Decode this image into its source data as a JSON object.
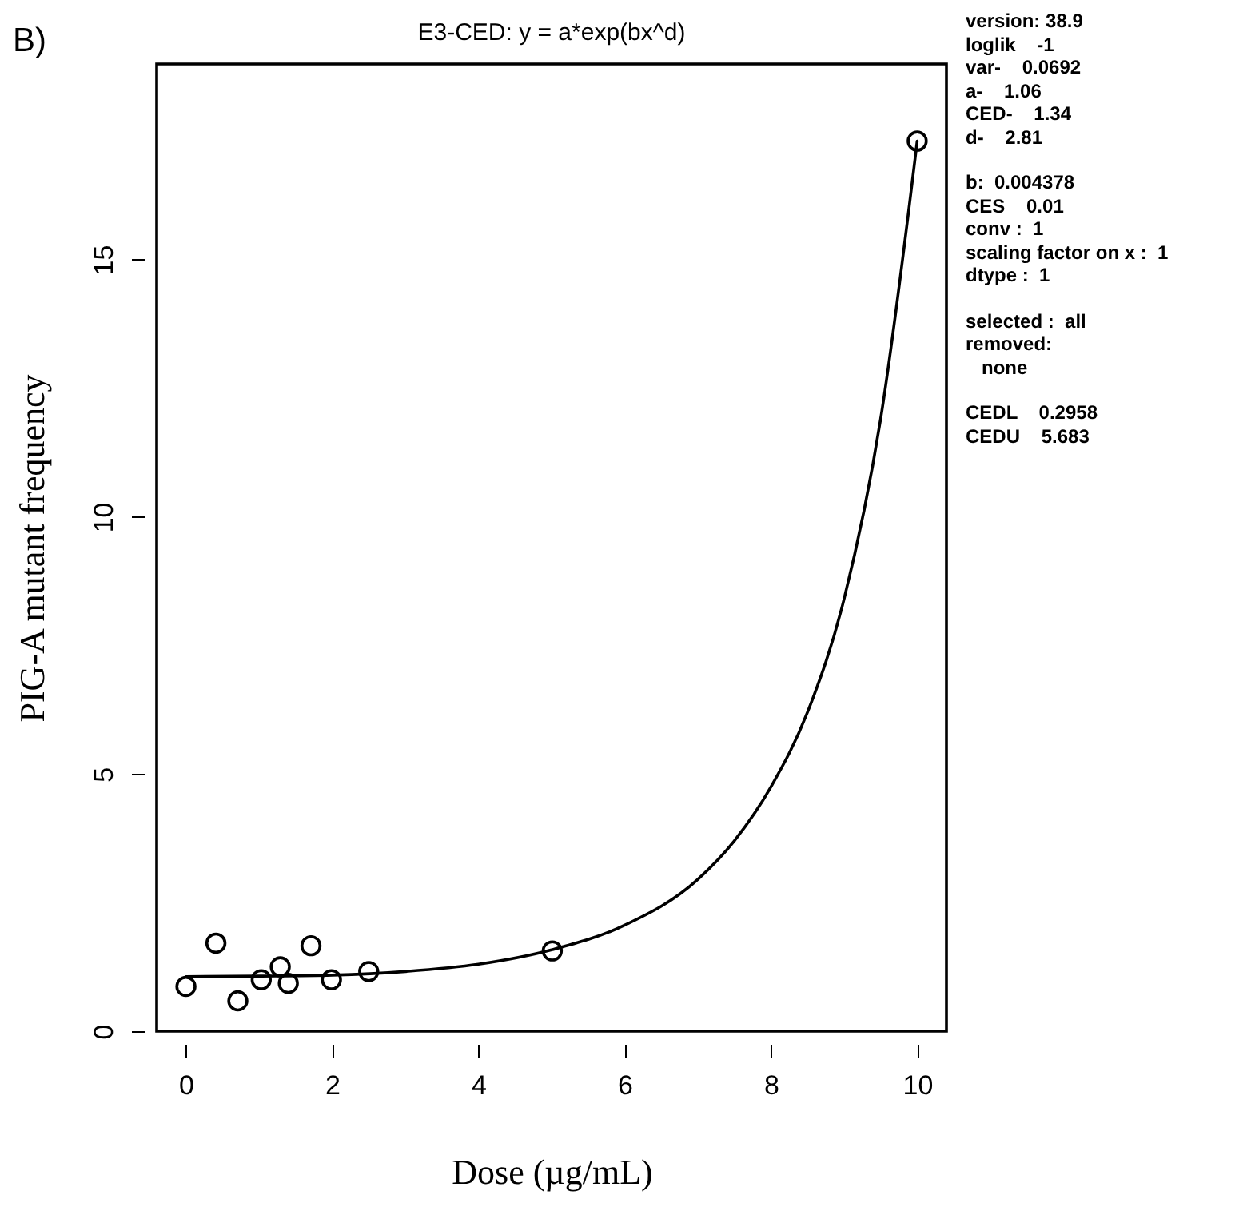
{
  "chart_data": {
    "type": "scatter",
    "title": "E3-CED: y = a*exp(bx^d)",
    "xlabel": "Dose (µg/mL)",
    "ylabel": "PIG-A mutant frequency",
    "annotations": [
      "B)",
      "version: 38.9\nloglik    -1\nvar-    0.0692\na-    1.06\nCED-    1.34\nd-    2.81",
      "b:  0.004378\nCES    0.01\nconv :  1\nscaling factor on x :  1\ndtype :  1",
      "selected :  all\nremoved:\n   none",
      "CEDL    0.2958\nCEDU    5.683"
    ],
    "xlim": [
      -0.4,
      10.4
    ],
    "xticks": [
      0,
      2,
      4,
      6,
      8,
      10
    ],
    "ylim": [
      0,
      18.8
    ],
    "yticks": [
      0,
      5,
      10,
      15
    ],
    "grid": false,
    "line_style": "solid",
    "series": [
      {
        "marker": "circle",
        "color": "#000000",
        "x": [
          0,
          0.41,
          0.71,
          1.03,
          1.29,
          1.4,
          1.71,
          1.99,
          2.5,
          5.01,
          10
        ],
        "values": [
          0.87,
          1.71,
          0.59,
          1.0,
          1.25,
          0.93,
          1.66,
          1.0,
          1.16,
          1.56,
          17.3
        ]
      },
      {
        "type": "line",
        "color": "#000000",
        "x": [
          0,
          1,
          2,
          3,
          4,
          5,
          6,
          7,
          7.5,
          8,
          8.5,
          9,
          9.5,
          10
        ],
        "values": [
          1.06,
          1.07,
          1.09,
          1.16,
          1.3,
          1.58,
          2.06,
          2.95,
          3.7,
          4.75,
          6.2,
          8.4,
          11.9,
          17.3
        ]
      }
    ]
  }
}
